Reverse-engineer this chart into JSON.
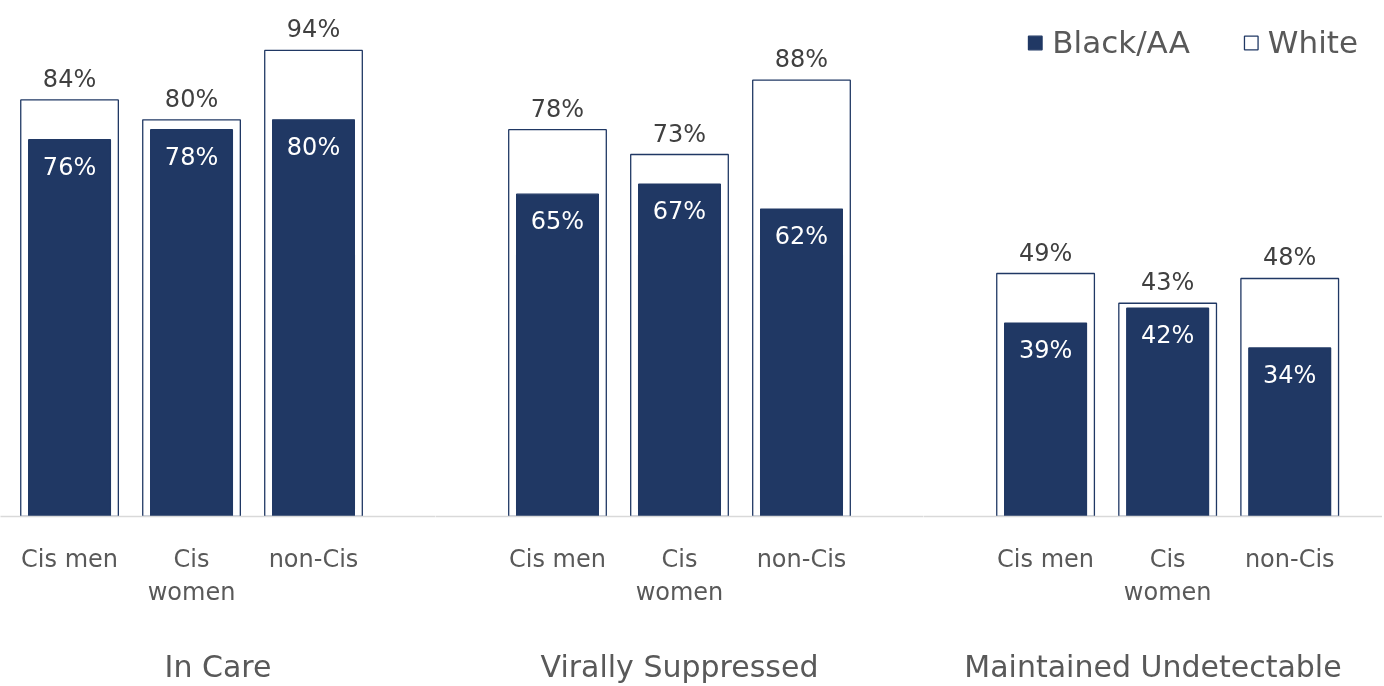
{
  "chart_data": [
    {
      "type": "bar",
      "xlabel": "In Care",
      "categories": [
        "Cis men",
        "Cis women",
        "non-Cis"
      ],
      "series": [
        {
          "color": "#203864",
          "values": [
            76,
            78,
            80
          ],
          "value_labels": [
            "76%",
            "78%",
            "80%"
          ]
        },
        {
          "color": "#ffffff",
          "values": [
            84,
            80,
            94
          ],
          "value_labels": [
            "84%",
            "80%",
            "94%"
          ]
        }
      ]
    },
    {
      "type": "bar",
      "xlabel": "Virally Suppressed",
      "categories": [
        "Cis men",
        "Cis women",
        "non-Cis"
      ],
      "series": [
        {
          "color": "#203864",
          "values": [
            65,
            67,
            62
          ],
          "value_labels": [
            "65%",
            "67%",
            "62%"
          ]
        },
        {
          "color": "#ffffff",
          "values": [
            78,
            73,
            88
          ],
          "value_labels": [
            "78%",
            "73%",
            "88%"
          ]
        }
      ]
    },
    {
      "type": "bar",
      "xlabel": "Maintained Undetectable",
      "categories": [
        "Cis men",
        "Cis women",
        "non-Cis"
      ],
      "legend": "top right",
      "series": [
        {
          "name": "Black/AA",
          "color": "#203864",
          "values": [
            39,
            42,
            34
          ],
          "value_labels": [
            "39%",
            "42%",
            "34%"
          ]
        },
        {
          "name": "White",
          "color": "#ffffff",
          "values": [
            49,
            43,
            48
          ],
          "value_labels": [
            "49%",
            "43%",
            "48%"
          ]
        }
      ]
    }
  ]
}
